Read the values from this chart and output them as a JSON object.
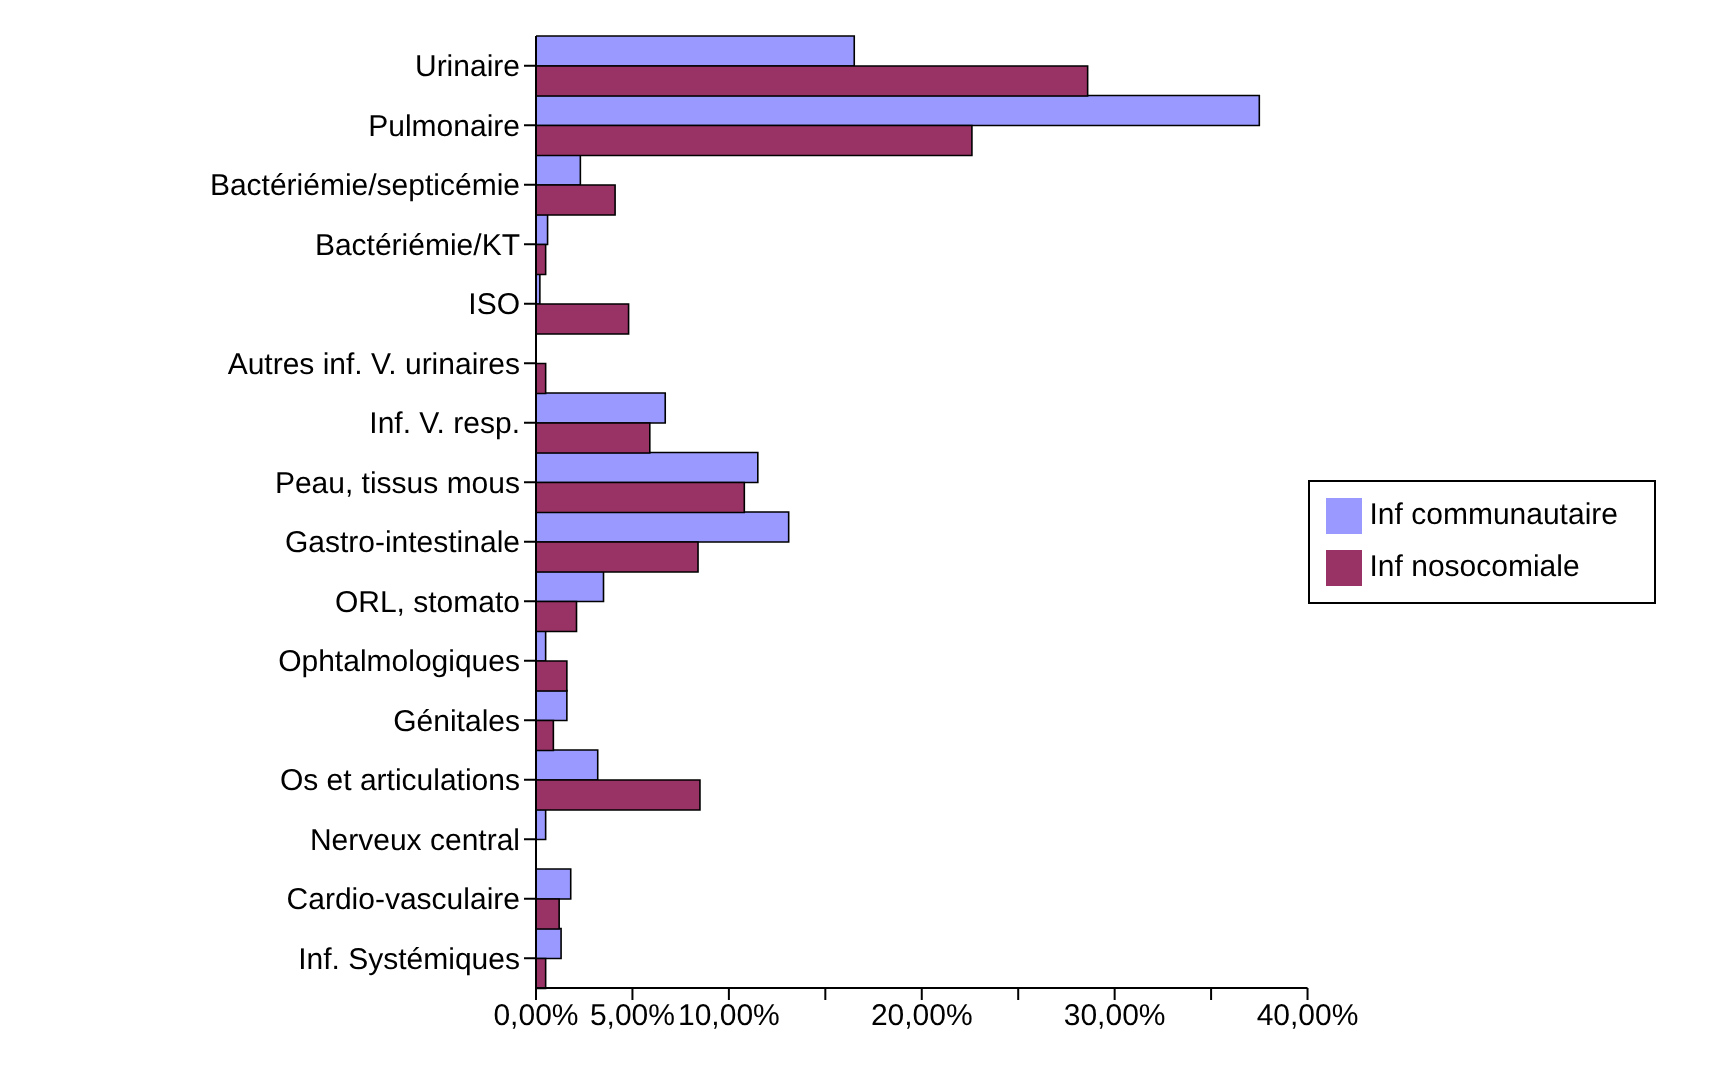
{
  "chart_data": {
    "type": "bar",
    "orientation": "horizontal",
    "categories": [
      "Urinaire",
      "Pulmonaire",
      "Bactériémie/septicémie",
      "Bactériémie/KT",
      "ISO",
      "Autres inf. V. urinaires",
      "Inf. V. resp.",
      "Peau, tissus mous",
      "Gastro-intestinale",
      "ORL, stomato",
      "Ophtalmologiques",
      "Génitales",
      "Os et articulations",
      "Nerveux central",
      "Cardio-vasculaire",
      "Inf. Systémiques"
    ],
    "series": [
      {
        "name": "Inf communautaire",
        "color": "#9999ff",
        "values": [
          16.5,
          37.5,
          2.3,
          0.6,
          0.2,
          0,
          6.7,
          11.5,
          13.1,
          3.5,
          0.5,
          1.6,
          3.2,
          0.5,
          1.8,
          1.3
        ]
      },
      {
        "name": "Inf nosocomiale",
        "color": "#993366",
        "values": [
          28.6,
          22.6,
          4.1,
          0.5,
          4.8,
          0.5,
          5.9,
          10.8,
          8.4,
          2.1,
          1.6,
          0.9,
          8.5,
          0,
          1.2,
          0.5
        ]
      }
    ],
    "xlim": [
      0,
      40
    ],
    "xticks": [
      {
        "value": 0,
        "label": "0,00%"
      },
      {
        "value": 5,
        "label": "5,00%"
      },
      {
        "value": 10,
        "label": "10,00%"
      },
      {
        "value": 15,
        "label": null
      },
      {
        "value": 20,
        "label": "20,00%"
      },
      {
        "value": 25,
        "label": null
      },
      {
        "value": 30,
        "label": "30,00%"
      },
      {
        "value": 35,
        "label": null
      },
      {
        "value": 40,
        "label": "40,00%"
      }
    ],
    "grid": false,
    "legend": "right"
  }
}
